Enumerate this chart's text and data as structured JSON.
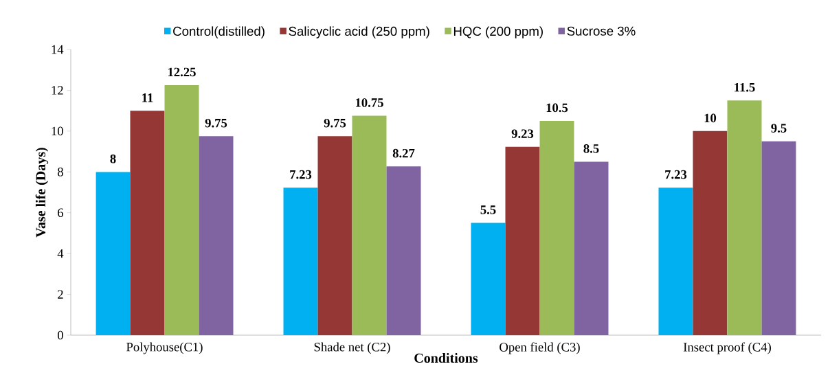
{
  "chart_data": {
    "type": "bar",
    "xlabel": "Conditions",
    "ylabel": "Vase life (Days)",
    "categories": [
      "Polyhouse(C1)",
      "Shade net (C2)",
      "Open field (C3)",
      "Insect proof (C4)"
    ],
    "series": [
      {
        "name": "Control(distilled)",
        "color": "#00b0f0",
        "values": [
          8,
          7.23,
          5.5,
          7.23
        ]
      },
      {
        "name": "Salicyclic acid (250 ppm)",
        "color": "#953735",
        "values": [
          11,
          9.75,
          9.23,
          10
        ]
      },
      {
        "name": "HQC (200 ppm)",
        "color": "#9bbb59",
        "values": [
          12.25,
          10.75,
          10.5,
          11.5
        ]
      },
      {
        "name": "Sucrose 3%",
        "color": "#8064a2",
        "values": [
          9.75,
          8.27,
          8.5,
          9.5
        ]
      }
    ],
    "ylim": [
      0,
      14
    ],
    "yticks": [
      0,
      2,
      4,
      6,
      8,
      10,
      12,
      14
    ],
    "data_labels": true,
    "legend": "top",
    "grid": false
  }
}
